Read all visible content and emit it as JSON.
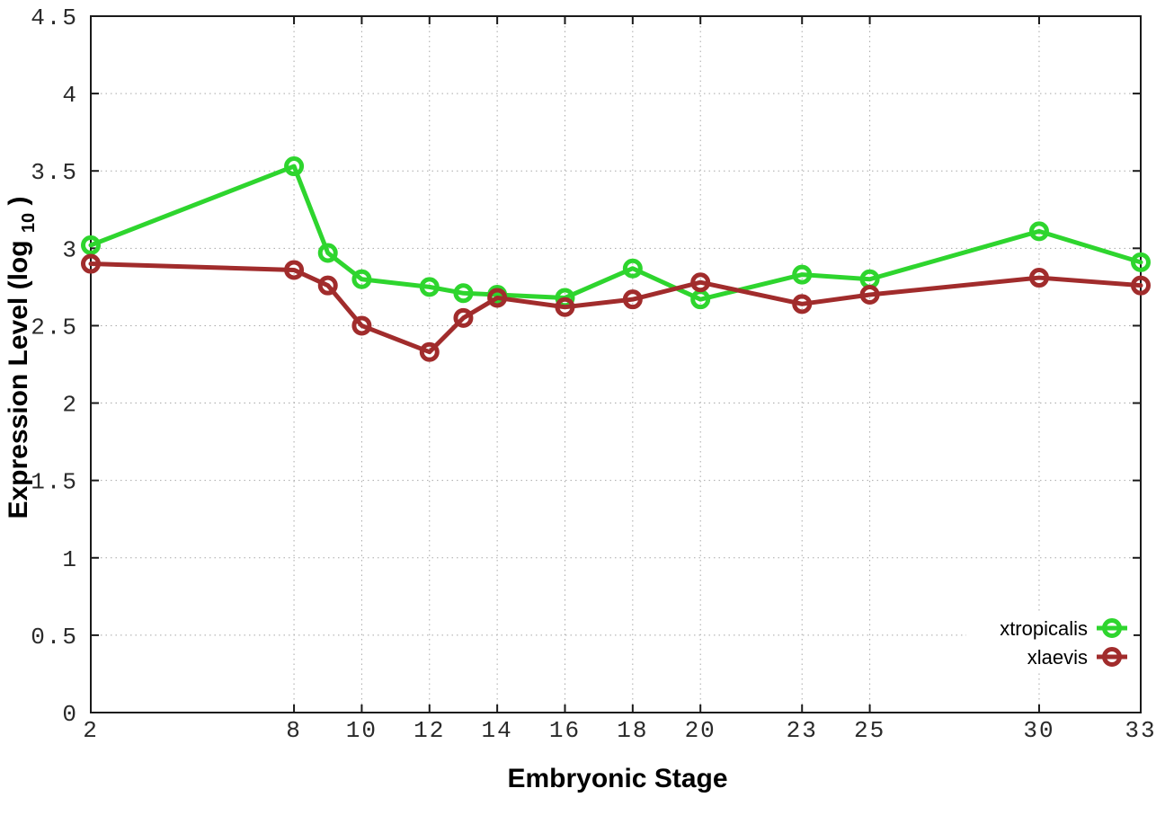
{
  "figure": {
    "background": "#ffffff",
    "border_color": "#1a1a1a",
    "grid_color": "#a8a8a8",
    "tick_color": "#1a1a1a"
  },
  "chart_data": {
    "type": "line",
    "title": "",
    "xlabel": "Embryonic Stage",
    "ylabel": "Expression Level (log10)",
    "ylabel_parts": {
      "pre": "Expression Level (log",
      "sub": "10",
      "post": ")"
    },
    "xlim": [
      2,
      33
    ],
    "ylim": [
      0,
      4.5
    ],
    "x_ticks": [
      2,
      8,
      10,
      12,
      14,
      16,
      18,
      20,
      23,
      25,
      30,
      33
    ],
    "y_ticks": [
      0,
      0.5,
      1,
      1.5,
      2,
      2.5,
      3,
      3.5,
      4,
      4.5
    ],
    "grid": true,
    "legend_position": "bottom-right",
    "marker": "open-circle",
    "x": [
      2,
      8,
      9,
      10,
      12,
      13,
      14,
      16,
      18,
      20,
      23,
      25,
      30,
      33
    ],
    "series": [
      {
        "name": "xtropicalis",
        "color": "#2ed52e",
        "values": [
          3.02,
          3.53,
          2.97,
          2.8,
          2.75,
          2.71,
          2.7,
          2.68,
          2.87,
          2.67,
          2.83,
          2.8,
          3.11,
          2.91
        ]
      },
      {
        "name": "xlaevis",
        "color": "#a12c2c",
        "values": [
          2.9,
          2.86,
          2.76,
          2.5,
          2.33,
          2.55,
          2.68,
          2.62,
          2.67,
          2.78,
          2.64,
          2.7,
          2.81,
          2.76
        ]
      }
    ]
  }
}
